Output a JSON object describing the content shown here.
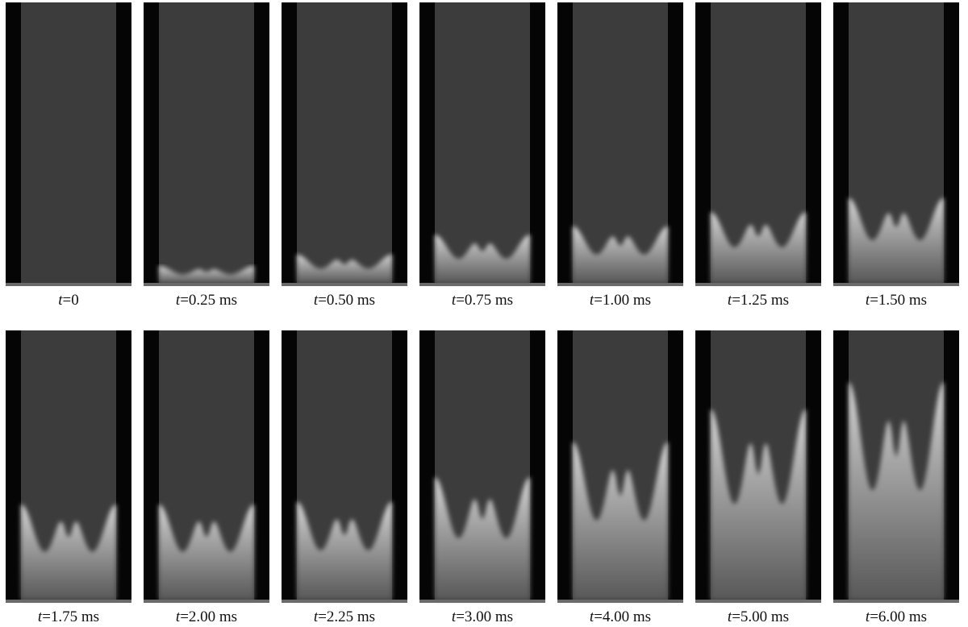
{
  "frames": [
    {
      "variable": "t",
      "rest": "=0"
    },
    {
      "variable": "t",
      "rest": "=0.25 ms"
    },
    {
      "variable": "t",
      "rest": "=0.50 ms"
    },
    {
      "variable": "t",
      "rest": "=0.75 ms"
    },
    {
      "variable": "t",
      "rest": "=1.00 ms"
    },
    {
      "variable": "t",
      "rest": "=1.25 ms"
    },
    {
      "variable": "t",
      "rest": "=1.50 ms"
    },
    {
      "variable": "t",
      "rest": "=1.75 ms"
    },
    {
      "variable": "t",
      "rest": "=2.00 ms"
    },
    {
      "variable": "t",
      "rest": "=2.25 ms"
    },
    {
      "variable": "t",
      "rest": "=3.00 ms"
    },
    {
      "variable": "t",
      "rest": "=4.00 ms"
    },
    {
      "variable": "t",
      "rest": "=5.00 ms"
    },
    {
      "variable": "t",
      "rest": "=6.00 ms"
    }
  ]
}
